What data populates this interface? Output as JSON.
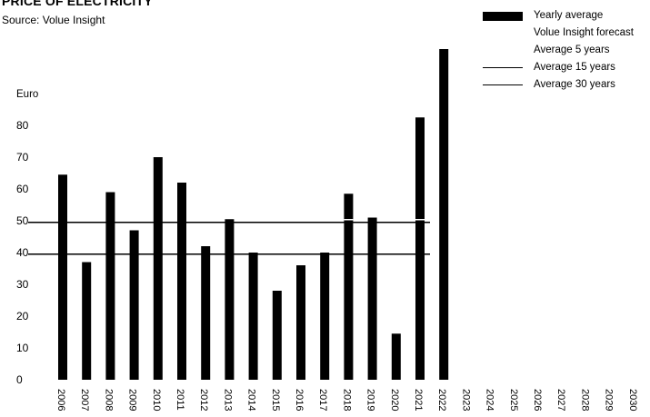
{
  "title": "PRICE OF ELECTRICITY",
  "subtitle": "Source: Volue Insight",
  "legend": [
    {
      "label": "Yearly average",
      "symbol": "bar"
    },
    {
      "label": "Volue Insight forecast",
      "symbol": "none"
    },
    {
      "label": "Average 5 years",
      "symbol": "none"
    },
    {
      "label": "Average 15 years",
      "symbol": "line"
    },
    {
      "label": "Average 30 years",
      "symbol": "line"
    }
  ],
  "chart_data": {
    "type": "bar",
    "title": "PRICE OF ELECTRICITY",
    "subtitle": "Source: Volue Insight",
    "ylabel": "Euro",
    "xlabel": "",
    "ylim": [
      0,
      100
    ],
    "yticks": [
      0,
      10,
      20,
      30,
      40,
      50,
      60,
      70,
      80
    ],
    "grid": false,
    "legend_position": "top-right",
    "categories": [
      "2006",
      "2007",
      "2008",
      "2009",
      "2010",
      "2011",
      "2012",
      "2013",
      "2014",
      "2015",
      "2016",
      "2017",
      "2018",
      "2019",
      "2020",
      "2021",
      "2022",
      "2023",
      "2024",
      "2025",
      "2026",
      "2027",
      "2028",
      "2029",
      "2030"
    ],
    "series": [
      {
        "name": "Yearly average",
        "values": [
          64.5,
          37,
          59,
          47,
          70,
          62,
          42,
          50.5,
          40,
          28,
          36,
          40,
          58.5,
          51,
          14.5,
          82.5,
          104,
          null,
          null,
          null,
          null,
          null,
          null,
          null,
          null
        ]
      }
    ],
    "reference_lines": [
      {
        "name": "Average 15 years",
        "value": 49.5
      },
      {
        "name": "Average 30 years",
        "value": 39.5
      }
    ],
    "bar_color": "#000000"
  }
}
